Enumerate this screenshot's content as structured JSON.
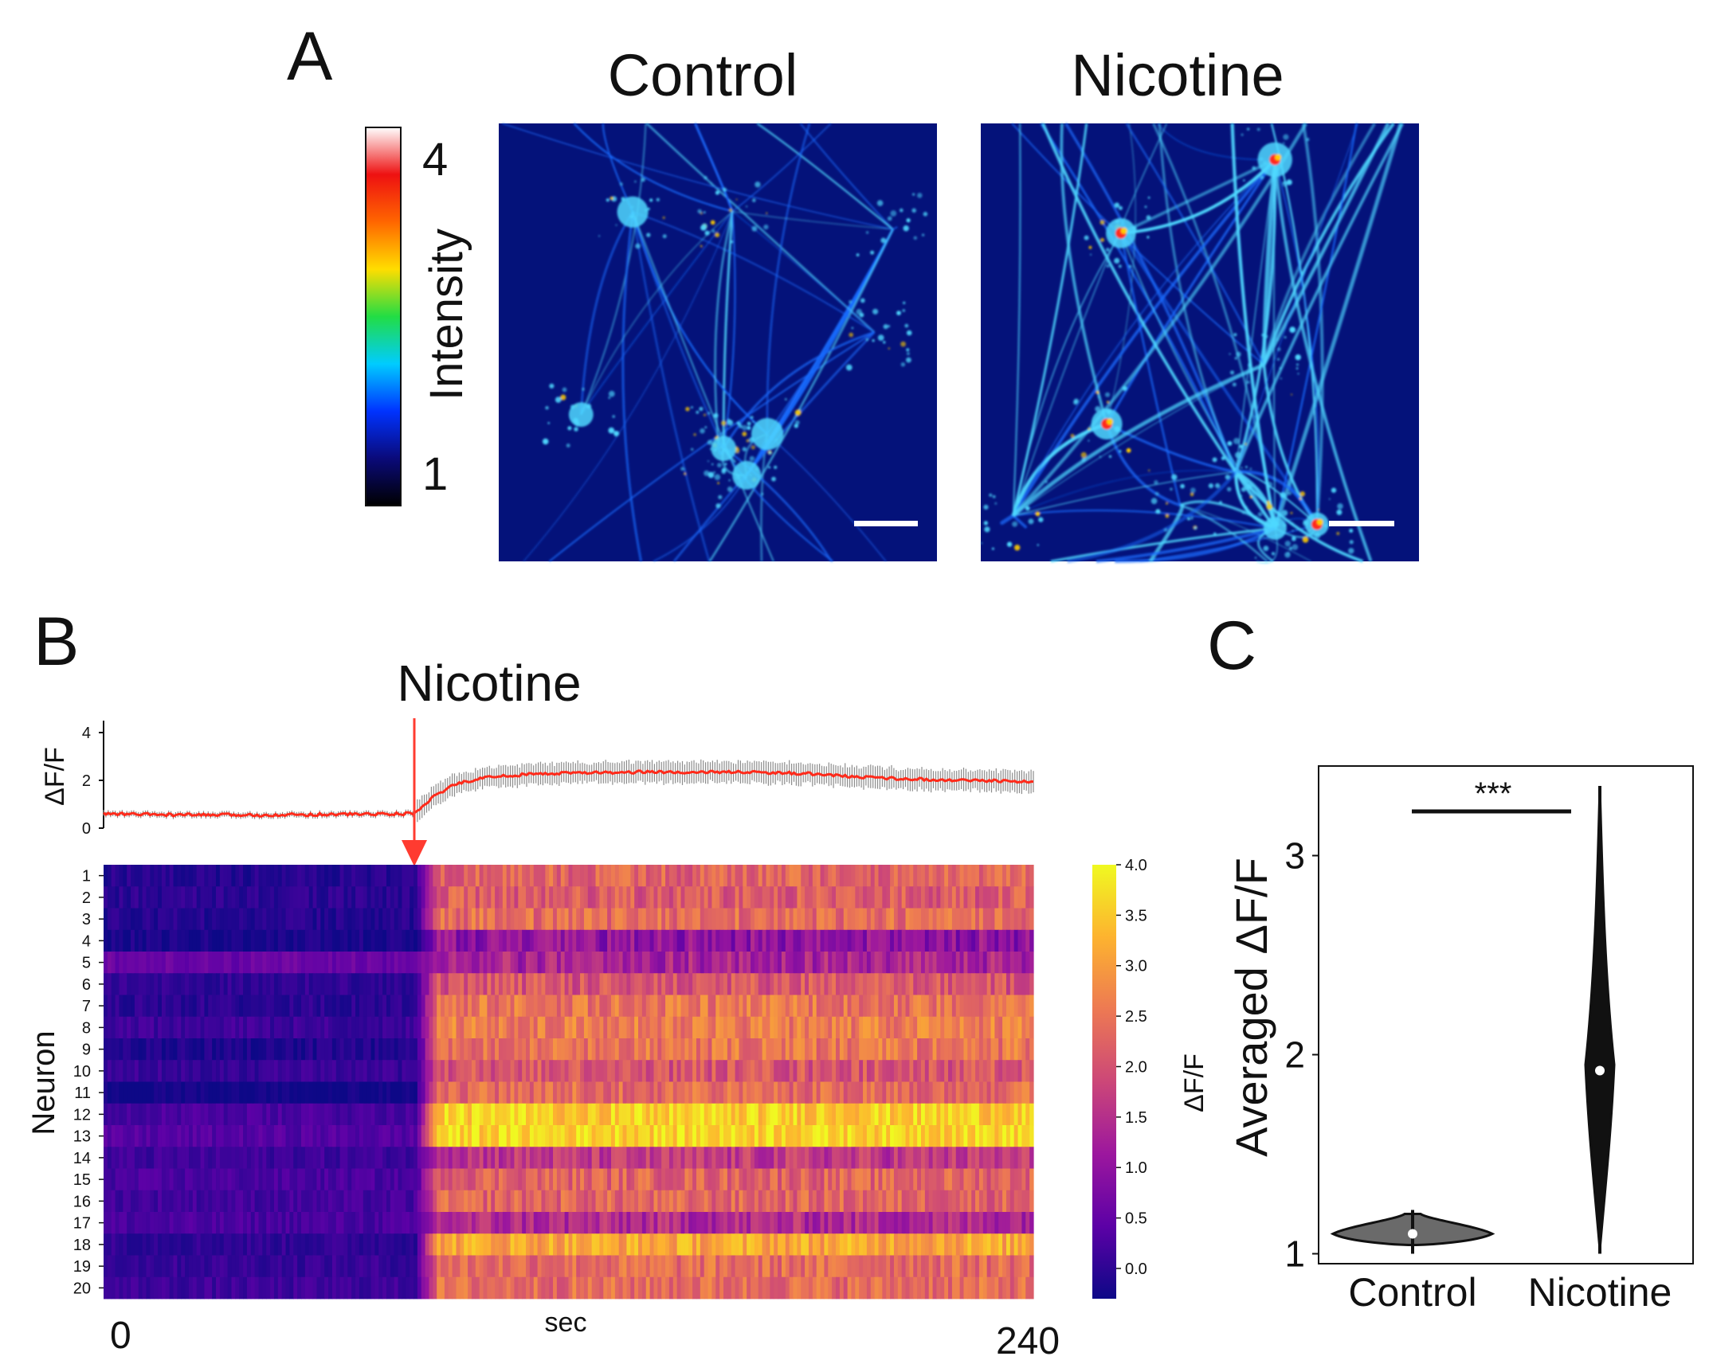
{
  "panels": {
    "a": "A",
    "b": "B",
    "c": "C"
  },
  "panel_a": {
    "titles": [
      "Control",
      "Nicotine"
    ],
    "colorbar": {
      "label": "Intensity",
      "max_label": "4",
      "min_label": "1",
      "stops": [
        "#000000",
        "#0a0a7a",
        "#0033ff",
        "#00ccff",
        "#22dd44",
        "#ffdd00",
        "#ff6600",
        "#ee1111",
        "#ffffff"
      ]
    },
    "image_palette": {
      "background": "#04127a",
      "neurite": "#1a6cff",
      "bright": "#4fd8ff",
      "hot": "#ff2a1a",
      "mid": "#ffcc00"
    }
  },
  "panel_b": {
    "event_label": "Nicotine",
    "event_color": "#ff3b30",
    "x_tick_left": "0",
    "x_tick_right": "240",
    "x_label": "sec",
    "trace": {
      "y_label": "ΔF/F",
      "y_ticks": [
        "0",
        "2",
        "4"
      ],
      "ylim": [
        0,
        4
      ],
      "mean_color": "#ff2a1a",
      "err_color": "#8c8c8c"
    },
    "heatmap": {
      "y_label": "Neuron",
      "rows": [
        "1",
        "2",
        "3",
        "4",
        "5",
        "6",
        "7",
        "8",
        "9",
        "10",
        "11",
        "12",
        "13",
        "14",
        "15",
        "16",
        "17",
        "18",
        "19",
        "20"
      ],
      "colorbar_label": "ΔF/F",
      "colorbar_ticks": [
        "4.0",
        "3.5",
        "3.0",
        "2.5",
        "2.0",
        "1.5",
        "1.0",
        "0.5",
        "0.0"
      ],
      "colormap": [
        "#0d0887",
        "#5c01a6",
        "#9c179e",
        "#cc4778",
        "#ed7953",
        "#fdb32f",
        "#f0f921"
      ]
    }
  },
  "panel_c": {
    "y_label": "Averaged ΔF/F",
    "y_ticks": [
      "1",
      "2",
      "3"
    ],
    "categories": [
      "Control",
      "Nicotine"
    ],
    "significance": "***"
  },
  "chart_data": [
    {
      "type": "line",
      "title": "",
      "xlabel": "sec",
      "ylabel": "ΔF/F",
      "xlim": [
        0,
        240
      ],
      "ylim": [
        0,
        4
      ],
      "event": {
        "label": "Nicotine",
        "x": 80
      },
      "series": [
        {
          "x": [
            0,
            20,
            40,
            60,
            80,
            85,
            90,
            95,
            100,
            110,
            120,
            140,
            160,
            180,
            200,
            220,
            240
          ],
          "values": [
            0.6,
            0.55,
            0.55,
            0.58,
            0.6,
            1.3,
            1.8,
            2.0,
            2.15,
            2.25,
            2.3,
            2.35,
            2.35,
            2.3,
            2.1,
            2.0,
            1.95
          ]
        }
      ]
    },
    {
      "type": "heatmap",
      "title": "",
      "xlabel": "sec",
      "ylabel": "Neuron",
      "xlim": [
        0,
        240
      ],
      "rows": [
        "1",
        "2",
        "3",
        "4",
        "5",
        "6",
        "7",
        "8",
        "9",
        "10",
        "11",
        "12",
        "13",
        "14",
        "15",
        "16",
        "17",
        "18",
        "19",
        "20"
      ],
      "colorbar_range": [
        0,
        4
      ],
      "row_baseline": [
        0.2,
        0.25,
        0.2,
        0.1,
        0.8,
        0.3,
        0.25,
        0.4,
        0.15,
        0.35,
        0.0,
        0.5,
        0.6,
        0.4,
        0.5,
        0.45,
        0.5,
        0.3,
        0.35,
        0.4
      ],
      "row_post": [
        2.4,
        2.3,
        2.5,
        1.2,
        1.5,
        2.2,
        2.6,
        2.7,
        2.6,
        2.2,
        2.5,
        3.6,
        3.7,
        1.8,
        2.4,
        2.4,
        1.6,
        3.2,
        2.5,
        2.5
      ]
    },
    {
      "type": "violin",
      "title": "",
      "xlabel": "",
      "ylabel": "Averaged ΔF/F",
      "categories": [
        "Control",
        "Nicotine"
      ],
      "ylim": [
        0.95,
        3.45
      ],
      "medians": [
        1.1,
        1.92
      ],
      "ranges": [
        [
          1.05,
          1.22
        ],
        [
          1.05,
          3.35
        ]
      ],
      "significance": "***"
    }
  ]
}
